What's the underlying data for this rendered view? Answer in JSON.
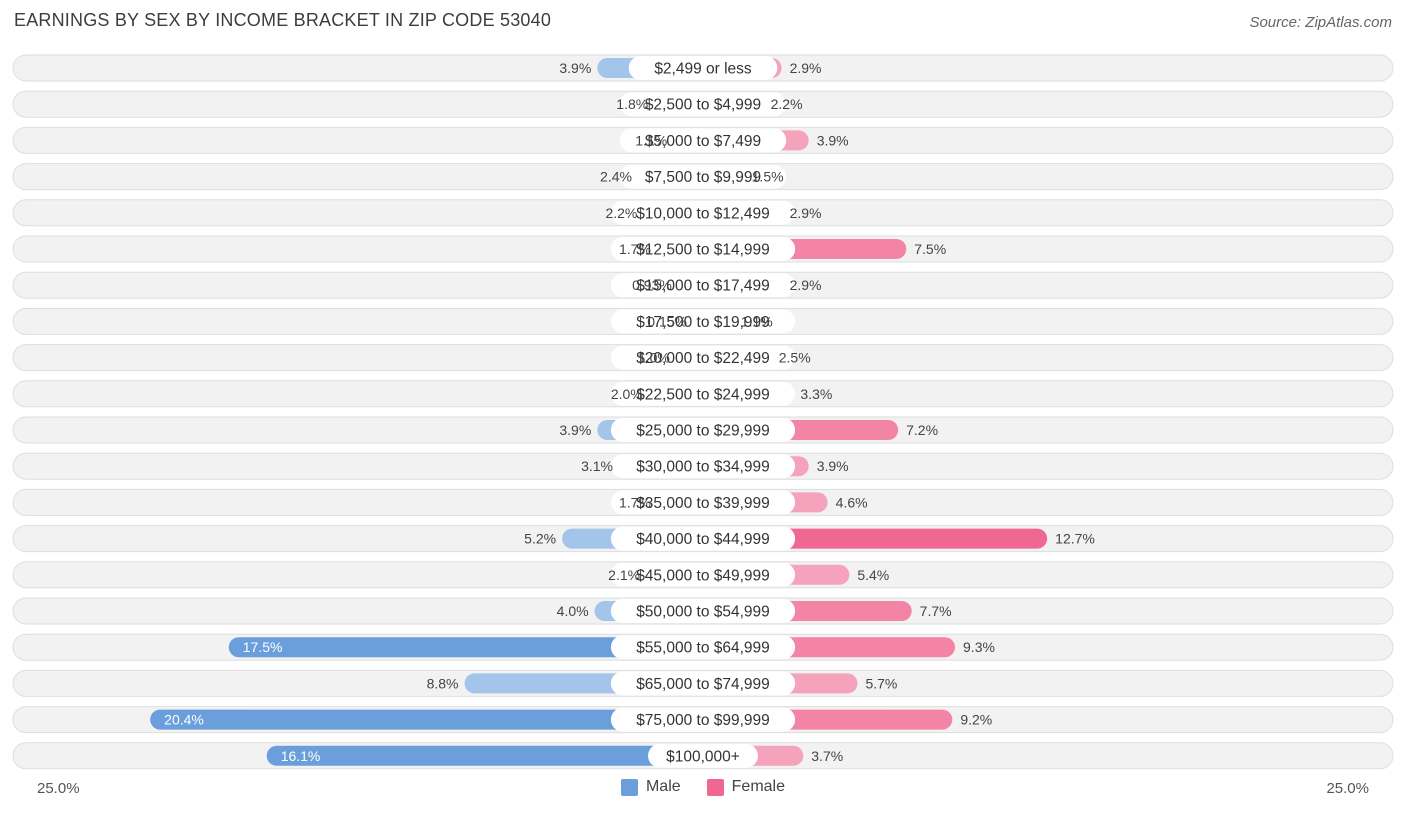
{
  "title": "EARNINGS BY SEX BY INCOME BRACKET IN ZIP CODE 53040",
  "source": "Source: ZipAtlas.com",
  "colors": {
    "male": "#a4c5ea",
    "male_strong": "#6a9fdb",
    "female": "#f5a3bc",
    "female_strong": "#f06792",
    "row_bg": "#f2f2f2",
    "row_border": "#dedede"
  },
  "chart_data": {
    "type": "bar",
    "orientation": "horizontal-diverging",
    "title": "EARNINGS BY SEX BY INCOME BRACKET IN ZIP CODE 53040",
    "categories": [
      "$2,499 or less",
      "$2,500 to $4,999",
      "$5,000 to $7,499",
      "$7,500 to $9,999",
      "$10,000 to $12,499",
      "$12,500 to $14,999",
      "$15,000 to $17,499",
      "$17,500 to $19,999",
      "$20,000 to $22,499",
      "$22,500 to $24,999",
      "$25,000 to $29,999",
      "$30,000 to $34,999",
      "$35,000 to $39,999",
      "$40,000 to $44,999",
      "$45,000 to $49,999",
      "$50,000 to $54,999",
      "$55,000 to $64,999",
      "$65,000 to $74,999",
      "$75,000 to $99,999",
      "$100,000+"
    ],
    "series": [
      {
        "name": "Male",
        "values": [
          3.9,
          1.8,
          1.1,
          2.4,
          2.2,
          1.7,
          0.93,
          0.15,
          1.0,
          2.0,
          3.9,
          3.1,
          1.7,
          5.2,
          2.1,
          4.0,
          17.5,
          8.8,
          20.4,
          16.1
        ],
        "labels": [
          "3.9%",
          "1.8%",
          "1.1%",
          "2.4%",
          "2.2%",
          "1.7%",
          "0.93%",
          "0.15%",
          "1.0%",
          "2.0%",
          "3.9%",
          "3.1%",
          "1.7%",
          "5.2%",
          "2.1%",
          "4.0%",
          "17.5%",
          "8.8%",
          "20.4%",
          "16.1%"
        ]
      },
      {
        "name": "Female",
        "values": [
          2.9,
          2.2,
          3.9,
          1.5,
          2.9,
          7.5,
          2.9,
          1.1,
          2.5,
          3.3,
          7.2,
          3.9,
          4.6,
          12.7,
          5.4,
          7.7,
          9.3,
          5.7,
          9.2,
          3.7
        ],
        "labels": [
          "2.9%",
          "2.2%",
          "3.9%",
          "1.5%",
          "2.9%",
          "7.5%",
          "2.9%",
          "1.1%",
          "2.5%",
          "3.3%",
          "7.2%",
          "3.9%",
          "4.6%",
          "12.7%",
          "5.4%",
          "7.7%",
          "9.3%",
          "5.7%",
          "9.2%",
          "3.7%"
        ]
      }
    ],
    "xlim": [
      -25,
      25
    ],
    "axis_labels": {
      "left": "25.0%",
      "right": "25.0%"
    },
    "legend": [
      "Male",
      "Female"
    ],
    "legend_position": "bottom-center"
  }
}
